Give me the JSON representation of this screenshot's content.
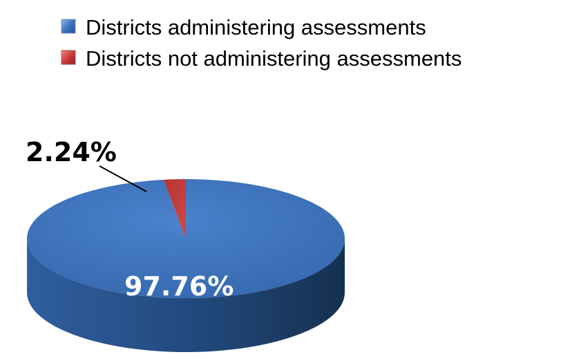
{
  "chart_data": {
    "type": "pie",
    "title": "",
    "legend_position": "top",
    "slices": [
      {
        "name": "Districts administering assessments",
        "value": 97.76,
        "label": "97.76%",
        "color": "#3e72b8"
      },
      {
        "name": "Districts not administering assessments",
        "value": 2.24,
        "label": "2.24%",
        "color": "#c43c3c"
      }
    ]
  }
}
